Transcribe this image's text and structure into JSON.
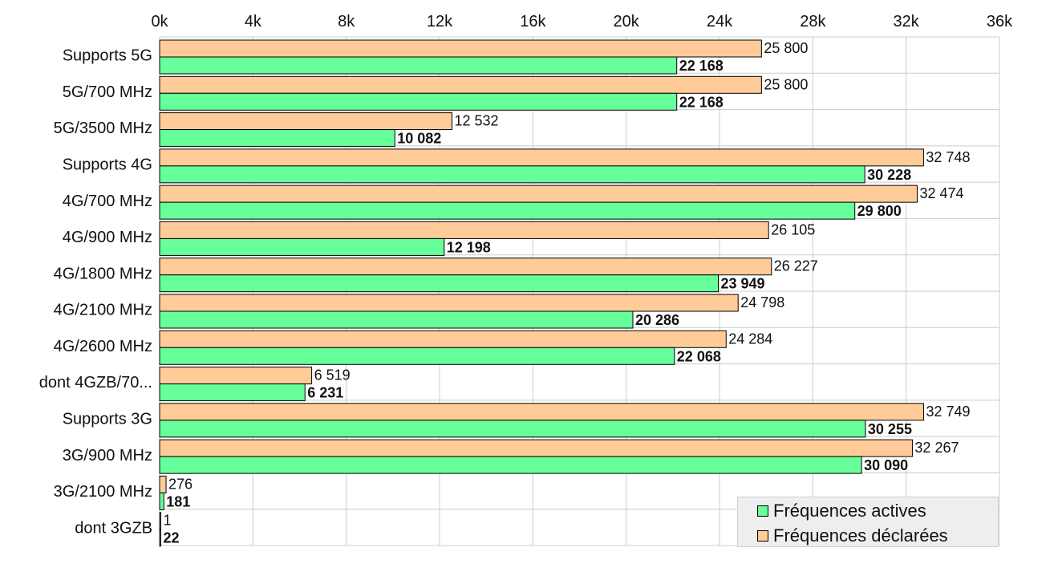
{
  "colors": {
    "active": "#66ff99",
    "declared": "#ffcc99",
    "grid": "#cccccc"
  },
  "legend": {
    "active_label": "Fréquences actives",
    "declared_label": "Fréquences déclarées"
  },
  "chart_data": {
    "type": "bar",
    "orientation": "horizontal",
    "title": "",
    "xlabel": "",
    "ylabel": "",
    "xlim": [
      0,
      36000
    ],
    "grid": true,
    "legend_position": "bottom-right",
    "x_ticks": [
      "0k",
      "4k",
      "8k",
      "12k",
      "16k",
      "20k",
      "24k",
      "28k",
      "32k",
      "36k"
    ],
    "categories": [
      "Supports 5G",
      "5G/700 MHz",
      "5G/3500 MHz",
      "Supports 4G",
      "4G/700 MHz",
      "4G/900 MHz",
      "4G/1800 MHz",
      "4G/2100 MHz",
      "4G/2600 MHz",
      "dont 4GZB/70...",
      "Supports 3G",
      "3G/900 MHz",
      "3G/2100 MHz",
      "dont 3GZB"
    ],
    "series": [
      {
        "name": "Fréquences déclarées",
        "values": [
          25800,
          25800,
          12532,
          32748,
          32474,
          26105,
          26227,
          24798,
          24284,
          6519,
          32749,
          32267,
          276,
          1
        ],
        "labels": [
          "25 800",
          "25 800",
          "12 532",
          "32 748",
          "32 474",
          "26 105",
          "26 227",
          "24 798",
          "24 284",
          "6 519",
          "32 749",
          "32 267",
          "276",
          "1"
        ]
      },
      {
        "name": "Fréquences actives",
        "values": [
          22168,
          22168,
          10082,
          30228,
          29800,
          12198,
          23949,
          20286,
          22068,
          6231,
          30255,
          30090,
          181,
          22
        ],
        "labels": [
          "22 168",
          "22 168",
          "10 082",
          "30 228",
          "29 800",
          "12 198",
          "23 949",
          "20 286",
          "22 068",
          "6 231",
          "30 255",
          "30 090",
          "181",
          "22"
        ]
      }
    ]
  }
}
